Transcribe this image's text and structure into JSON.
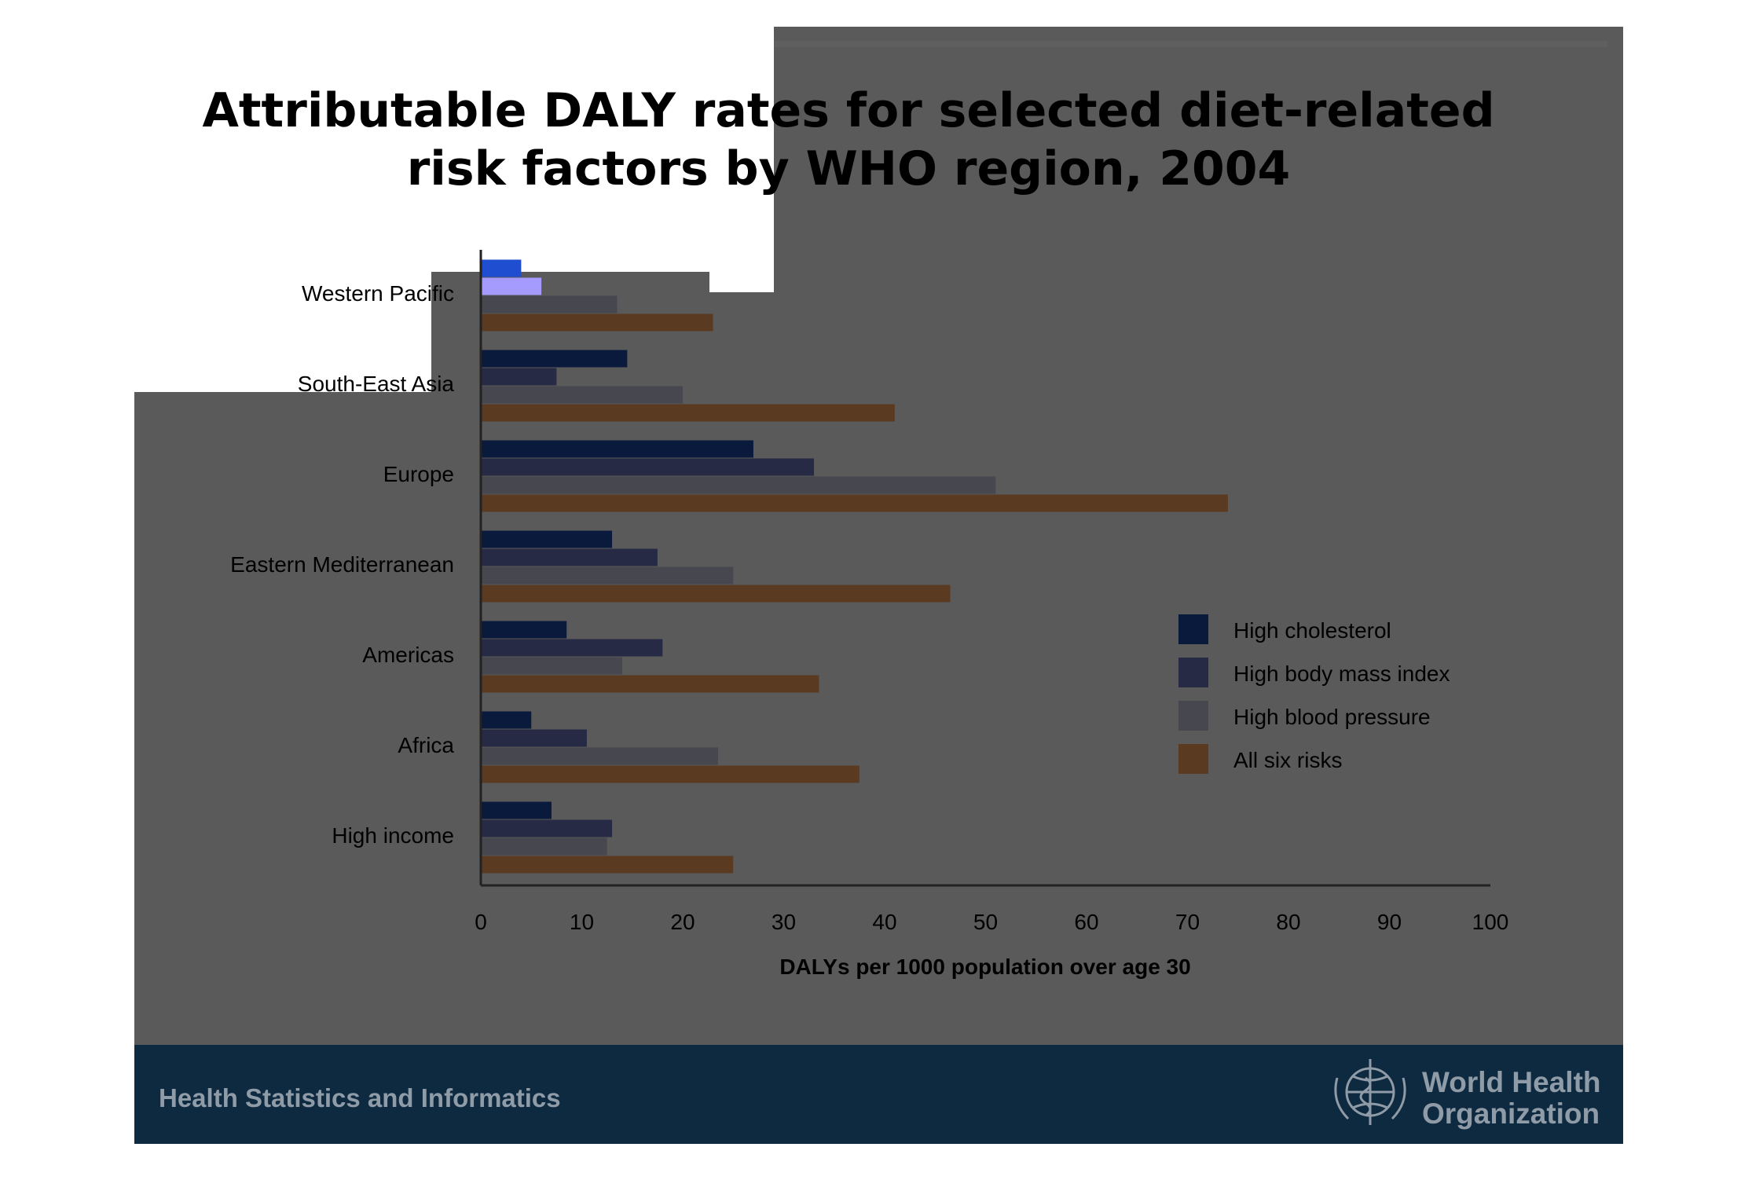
{
  "slide": {
    "title_line1": "Attributable DALY rates for selected diet-related",
    "title_line2": "risk factors by WHO region, 2004",
    "footer_text": "Health Statistics and Informatics",
    "org_line1": "World Health",
    "org_line2": "Organization",
    "logo_icon": "who-emblem-icon",
    "colors": {
      "panel": "#5a5a5a",
      "footer": "#0e2a41",
      "footer_text": "#8f9ba6"
    }
  },
  "chart_data": {
    "type": "bar",
    "orientation": "horizontal",
    "title": "Attributable DALY rates for selected diet-related risk factors by WHO region, 2004",
    "xlabel": "DALYs per 1000 population over age 30",
    "ylabel": "",
    "xlim": [
      0,
      100
    ],
    "xticks": [
      0,
      10,
      20,
      30,
      40,
      50,
      60,
      70,
      80,
      90,
      100
    ],
    "grid": false,
    "legend_position": "right",
    "categories": [
      "Western Pacific",
      "South-East Asia",
      "Europe",
      "Eastern Mediterranean",
      "Americas",
      "Africa",
      "High income"
    ],
    "series": [
      {
        "name": "High cholesterol",
        "color": "#0a1a3c",
        "values": [
          4,
          14.5,
          27,
          13,
          8.5,
          5,
          7
        ]
      },
      {
        "name": "High body mass index",
        "color": "#262a44",
        "values": [
          6,
          7.5,
          33,
          17.5,
          18,
          10.5,
          13
        ]
      },
      {
        "name": "High blood pressure",
        "color": "#47474f",
        "values": [
          13.5,
          20,
          51,
          25,
          14,
          23.5,
          12.5
        ]
      },
      {
        "name": "All six risks",
        "color": "#5b3a22",
        "values": [
          23,
          41,
          74,
          46.5,
          33.5,
          37.5,
          25
        ]
      }
    ],
    "highlight_colors": [
      "#1f4fd0",
      "#a59bff"
    ]
  }
}
